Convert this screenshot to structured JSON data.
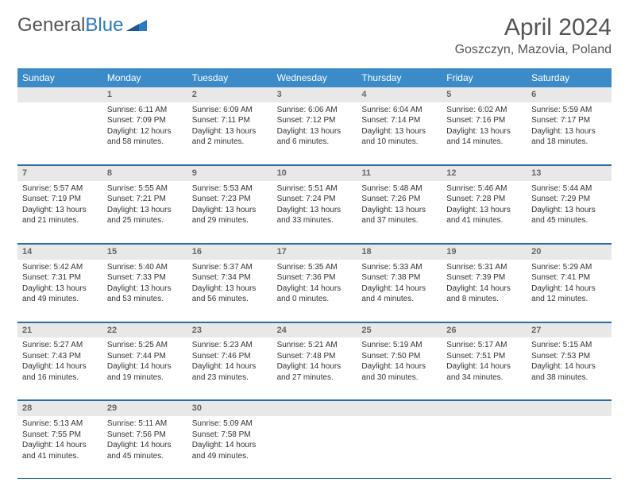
{
  "brand": {
    "part1": "General",
    "part2": "Blue"
  },
  "title": "April 2024",
  "location": "Goszczyn, Mazovia, Poland",
  "colors": {
    "header_bg": "#3b8bc9",
    "header_text": "#ffffff",
    "daynum_bg": "#e8e8e8",
    "daynum_text": "#666666",
    "body_text": "#333333",
    "rule": "#2b6ca3",
    "brand_gray": "#555555",
    "brand_blue": "#2b7bbf"
  },
  "day_names": [
    "Sunday",
    "Monday",
    "Tuesday",
    "Wednesday",
    "Thursday",
    "Friday",
    "Saturday"
  ],
  "weeks": [
    [
      null,
      {
        "n": "1",
        "sr": "6:11 AM",
        "ss": "7:09 PM",
        "dl": "12 hours and 58 minutes."
      },
      {
        "n": "2",
        "sr": "6:09 AM",
        "ss": "7:11 PM",
        "dl": "13 hours and 2 minutes."
      },
      {
        "n": "3",
        "sr": "6:06 AM",
        "ss": "7:12 PM",
        "dl": "13 hours and 6 minutes."
      },
      {
        "n": "4",
        "sr": "6:04 AM",
        "ss": "7:14 PM",
        "dl": "13 hours and 10 minutes."
      },
      {
        "n": "5",
        "sr": "6:02 AM",
        "ss": "7:16 PM",
        "dl": "13 hours and 14 minutes."
      },
      {
        "n": "6",
        "sr": "5:59 AM",
        "ss": "7:17 PM",
        "dl": "13 hours and 18 minutes."
      }
    ],
    [
      {
        "n": "7",
        "sr": "5:57 AM",
        "ss": "7:19 PM",
        "dl": "13 hours and 21 minutes."
      },
      {
        "n": "8",
        "sr": "5:55 AM",
        "ss": "7:21 PM",
        "dl": "13 hours and 25 minutes."
      },
      {
        "n": "9",
        "sr": "5:53 AM",
        "ss": "7:23 PM",
        "dl": "13 hours and 29 minutes."
      },
      {
        "n": "10",
        "sr": "5:51 AM",
        "ss": "7:24 PM",
        "dl": "13 hours and 33 minutes."
      },
      {
        "n": "11",
        "sr": "5:48 AM",
        "ss": "7:26 PM",
        "dl": "13 hours and 37 minutes."
      },
      {
        "n": "12",
        "sr": "5:46 AM",
        "ss": "7:28 PM",
        "dl": "13 hours and 41 minutes."
      },
      {
        "n": "13",
        "sr": "5:44 AM",
        "ss": "7:29 PM",
        "dl": "13 hours and 45 minutes."
      }
    ],
    [
      {
        "n": "14",
        "sr": "5:42 AM",
        "ss": "7:31 PM",
        "dl": "13 hours and 49 minutes."
      },
      {
        "n": "15",
        "sr": "5:40 AM",
        "ss": "7:33 PM",
        "dl": "13 hours and 53 minutes."
      },
      {
        "n": "16",
        "sr": "5:37 AM",
        "ss": "7:34 PM",
        "dl": "13 hours and 56 minutes."
      },
      {
        "n": "17",
        "sr": "5:35 AM",
        "ss": "7:36 PM",
        "dl": "14 hours and 0 minutes."
      },
      {
        "n": "18",
        "sr": "5:33 AM",
        "ss": "7:38 PM",
        "dl": "14 hours and 4 minutes."
      },
      {
        "n": "19",
        "sr": "5:31 AM",
        "ss": "7:39 PM",
        "dl": "14 hours and 8 minutes."
      },
      {
        "n": "20",
        "sr": "5:29 AM",
        "ss": "7:41 PM",
        "dl": "14 hours and 12 minutes."
      }
    ],
    [
      {
        "n": "21",
        "sr": "5:27 AM",
        "ss": "7:43 PM",
        "dl": "14 hours and 16 minutes."
      },
      {
        "n": "22",
        "sr": "5:25 AM",
        "ss": "7:44 PM",
        "dl": "14 hours and 19 minutes."
      },
      {
        "n": "23",
        "sr": "5:23 AM",
        "ss": "7:46 PM",
        "dl": "14 hours and 23 minutes."
      },
      {
        "n": "24",
        "sr": "5:21 AM",
        "ss": "7:48 PM",
        "dl": "14 hours and 27 minutes."
      },
      {
        "n": "25",
        "sr": "5:19 AM",
        "ss": "7:50 PM",
        "dl": "14 hours and 30 minutes."
      },
      {
        "n": "26",
        "sr": "5:17 AM",
        "ss": "7:51 PM",
        "dl": "14 hours and 34 minutes."
      },
      {
        "n": "27",
        "sr": "5:15 AM",
        "ss": "7:53 PM",
        "dl": "14 hours and 38 minutes."
      }
    ],
    [
      {
        "n": "28",
        "sr": "5:13 AM",
        "ss": "7:55 PM",
        "dl": "14 hours and 41 minutes."
      },
      {
        "n": "29",
        "sr": "5:11 AM",
        "ss": "7:56 PM",
        "dl": "14 hours and 45 minutes."
      },
      {
        "n": "30",
        "sr": "5:09 AM",
        "ss": "7:58 PM",
        "dl": "14 hours and 49 minutes."
      },
      null,
      null,
      null,
      null
    ]
  ],
  "labels": {
    "sunrise": "Sunrise:",
    "sunset": "Sunset:",
    "daylight": "Daylight:"
  }
}
